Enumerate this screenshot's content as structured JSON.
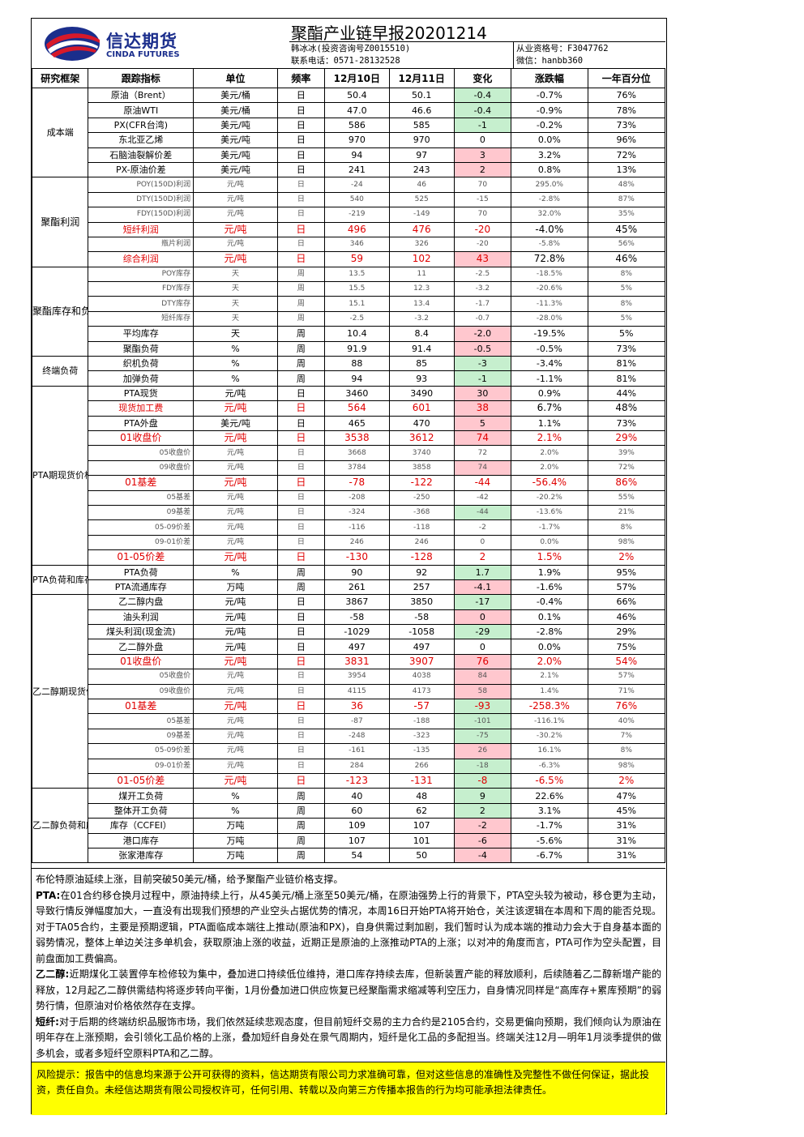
{
  "header": {
    "logo_cn": "信达期货",
    "logo_en": "CINDA FUTURES",
    "title": "聚酯产业链早报20201214",
    "analyst": "韩冰冰(投资咨询号Z0015510)",
    "phone": "联系电话：0571-28132528",
    "license": "从业资格号：F3047762",
    "wechat": "微信：hanbb360"
  },
  "columns": [
    "研究框架",
    "跟踪指标",
    "单位",
    "频率",
    "12月10日",
    "12月11日",
    "变化",
    "涨跌幅",
    "一年百分位"
  ],
  "groups": [
    {
      "name": "成本端",
      "rows": [
        {
          "ind": "原油（Brent）",
          "unit": "美元/桶",
          "freq": "日",
          "d1": "50.4",
          "d2": "50.1",
          "chg": "-0.4",
          "pct": "-0.7%",
          "pctl": "76%",
          "hl": "g"
        },
        {
          "ind": "原油WTI",
          "unit": "美元/桶",
          "freq": "日",
          "d1": "47.0",
          "d2": "46.6",
          "chg": "-0.4",
          "pct": "-0.9%",
          "pctl": "78%",
          "hl": "g"
        },
        {
          "ind": "PX(CFR台湾)",
          "unit": "美元/吨",
          "freq": "日",
          "d1": "586",
          "d2": "585",
          "chg": "-1",
          "pct": "-0.2%",
          "pctl": "73%",
          "hl": "g"
        },
        {
          "ind": "东北亚乙烯",
          "unit": "美元/吨",
          "freq": "日",
          "d1": "970",
          "d2": "970",
          "chg": "0",
          "pct": "0.0%",
          "pctl": "96%",
          "hl": ""
        },
        {
          "ind": "石脑油裂解价差",
          "unit": "美元/吨",
          "freq": "日",
          "d1": "94",
          "d2": "97",
          "chg": "3",
          "pct": "3.2%",
          "pctl": "72%",
          "hl": "r"
        },
        {
          "ind": "PX-原油价差",
          "unit": "美元/吨",
          "freq": "日",
          "d1": "241",
          "d2": "243",
          "chg": "2",
          "pct": "0.8%",
          "pctl": "13%",
          "hl": "r"
        }
      ]
    },
    {
      "name": "聚酯利润",
      "rows": [
        {
          "ind": "POY(150D)利润",
          "unit": "元/吨",
          "freq": "日",
          "d1": "-24",
          "d2": "46",
          "chg": "70",
          "pct": "295.0%",
          "pctl": "48%",
          "hl": "",
          "style": "small"
        },
        {
          "ind": "DTY(150D)利润",
          "unit": "元/吨",
          "freq": "日",
          "d1": "540",
          "d2": "525",
          "chg": "-15",
          "pct": "-2.8%",
          "pctl": "87%",
          "hl": "",
          "style": "small"
        },
        {
          "ind": "FDY(150D)利润",
          "unit": "元/吨",
          "freq": "日",
          "d1": "-219",
          "d2": "-149",
          "chg": "70",
          "pct": "32.0%",
          "pctl": "35%",
          "hl": "",
          "style": "small"
        },
        {
          "ind": "短纤利润",
          "unit": "元/吨",
          "freq": "日",
          "d1": "496",
          "d2": "476",
          "chg": "-20",
          "pct": "-4.0%",
          "pctl": "45%",
          "hl": "",
          "style": "redleft"
        },
        {
          "ind": "瓶片利润",
          "unit": "元/吨",
          "freq": "日",
          "d1": "346",
          "d2": "326",
          "chg": "-20",
          "pct": "-5.8%",
          "pctl": "56%",
          "hl": "",
          "style": "small"
        },
        {
          "ind": "综合利润",
          "unit": "元/吨",
          "freq": "日",
          "d1": "59",
          "d2": "102",
          "chg": "43",
          "pct": "72.8%",
          "pctl": "46%",
          "hl": "r",
          "style": "redleft2"
        }
      ]
    },
    {
      "name": "聚酯库存和负荷",
      "rows": [
        {
          "ind": "POY库存",
          "unit": "天",
          "freq": "周",
          "d1": "13.5",
          "d2": "11",
          "chg": "-2.5",
          "pct": "-18.5%",
          "pctl": "8%",
          "hl": "",
          "style": "small"
        },
        {
          "ind": "FDY库存",
          "unit": "天",
          "freq": "周",
          "d1": "15.5",
          "d2": "12.3",
          "chg": "-3.2",
          "pct": "-20.6%",
          "pctl": "5%",
          "hl": "",
          "style": "small"
        },
        {
          "ind": "DTY库存",
          "unit": "天",
          "freq": "周",
          "d1": "15.1",
          "d2": "13.4",
          "chg": "-1.7",
          "pct": "-11.3%",
          "pctl": "8%",
          "hl": "",
          "style": "small"
        },
        {
          "ind": "短纤库存",
          "unit": "天",
          "freq": "周",
          "d1": "-2.5",
          "d2": "-3.2",
          "chg": "-0.7",
          "pct": "-28.0%",
          "pctl": "5%",
          "hl": "",
          "style": "small"
        },
        {
          "ind": "平均库存",
          "unit": "天",
          "freq": "周",
          "d1": "10.4",
          "d2": "8.4",
          "chg": "-2.0",
          "pct": "-19.5%",
          "pctl": "5%",
          "hl": "r"
        },
        {
          "ind": "聚酯负荷",
          "unit": "%",
          "freq": "周",
          "d1": "91.9",
          "d2": "91.4",
          "chg": "-0.5",
          "pct": "-0.5%",
          "pctl": "73%",
          "hl": "r"
        }
      ]
    },
    {
      "name": "终端负荷",
      "rows": [
        {
          "ind": "织机负荷",
          "unit": "%",
          "freq": "周",
          "d1": "88",
          "d2": "85",
          "chg": "-3",
          "pct": "-3.4%",
          "pctl": "81%",
          "hl": "g"
        },
        {
          "ind": "加弹负荷",
          "unit": "%",
          "freq": "周",
          "d1": "94",
          "d2": "93",
          "chg": "-1",
          "pct": "-1.1%",
          "pctl": "81%",
          "hl": "g"
        }
      ]
    },
    {
      "name": "PTA期现货价格和价差",
      "rows": [
        {
          "ind": "PTA现货",
          "unit": "元/吨",
          "freq": "日",
          "d1": "3460",
          "d2": "3490",
          "chg": "30",
          "pct": "0.9%",
          "pctl": "44%",
          "hl": "r"
        },
        {
          "ind": "现货加工费",
          "unit": "元/吨",
          "freq": "日",
          "d1": "564",
          "d2": "601",
          "chg": "38",
          "pct": "6.7%",
          "pctl": "48%",
          "hl": "r",
          "style": "redleft"
        },
        {
          "ind": "PTA外盘",
          "unit": "美元/吨",
          "freq": "日",
          "d1": "465",
          "d2": "470",
          "chg": "5",
          "pct": "1.1%",
          "pctl": "73%",
          "hl": "r"
        },
        {
          "ind": "01收盘价",
          "unit": "元/吨",
          "freq": "日",
          "d1": "3538",
          "d2": "3612",
          "chg": "74",
          "pct": "2.1%",
          "pctl": "29%",
          "hl": "r",
          "style": "red"
        },
        {
          "ind": "05收盘价",
          "unit": "元/吨",
          "freq": "日",
          "d1": "3668",
          "d2": "3740",
          "chg": "72",
          "pct": "2.0%",
          "pctl": "39%",
          "hl": "",
          "style": "small"
        },
        {
          "ind": "09收盘价",
          "unit": "元/吨",
          "freq": "日",
          "d1": "3784",
          "d2": "3858",
          "chg": "74",
          "pct": "2.0%",
          "pctl": "72%",
          "hl": "r",
          "style": "small"
        },
        {
          "ind": "01基差",
          "unit": "元/吨",
          "freq": "日",
          "d1": "-78",
          "d2": "-122",
          "chg": "-44",
          "pct": "-56.4%",
          "pctl": "86%",
          "hl": "",
          "style": "red"
        },
        {
          "ind": "05基差",
          "unit": "元/吨",
          "freq": "日",
          "d1": "-208",
          "d2": "-250",
          "chg": "-42",
          "pct": "-20.2%",
          "pctl": "55%",
          "hl": "",
          "style": "small"
        },
        {
          "ind": "09基差",
          "unit": "元/吨",
          "freq": "日",
          "d1": "-324",
          "d2": "-368",
          "chg": "-44",
          "pct": "-13.6%",
          "pctl": "21%",
          "hl": "g",
          "style": "small"
        },
        {
          "ind": "05-09价差",
          "unit": "元/吨",
          "freq": "日",
          "d1": "-116",
          "d2": "-118",
          "chg": "-2",
          "pct": "-1.7%",
          "pctl": "8%",
          "hl": "",
          "style": "small"
        },
        {
          "ind": "09-01价差",
          "unit": "元/吨",
          "freq": "日",
          "d1": "246",
          "d2": "246",
          "chg": "0",
          "pct": "0.0%",
          "pctl": "98%",
          "hl": "",
          "style": "small"
        },
        {
          "ind": "01-05价差",
          "unit": "元/吨",
          "freq": "日",
          "d1": "-130",
          "d2": "-128",
          "chg": "2",
          "pct": "1.5%",
          "pctl": "2%",
          "hl": "",
          "style": "red"
        }
      ]
    },
    {
      "name": "PTA负荷和库存",
      "rows": [
        {
          "ind": "PTA负荷",
          "unit": "%",
          "freq": "周",
          "d1": "90",
          "d2": "92",
          "chg": "1.7",
          "pct": "1.9%",
          "pctl": "95%",
          "hl": "g"
        },
        {
          "ind": "PTA流通库存",
          "unit": "万吨",
          "freq": "周",
          "d1": "261",
          "d2": "257",
          "chg": "-4.1",
          "pct": "-1.6%",
          "pctl": "57%",
          "hl": "r"
        }
      ]
    },
    {
      "name": "乙二醇期现货价格和价差",
      "rows": [
        {
          "ind": "乙二醇内盘",
          "unit": "元/吨",
          "freq": "日",
          "d1": "3867",
          "d2": "3850",
          "chg": "-17",
          "pct": "-0.4%",
          "pctl": "66%",
          "hl": "g"
        },
        {
          "ind": "油头利润",
          "unit": "元/吨",
          "freq": "日",
          "d1": "-58",
          "d2": "-58",
          "chg": "0",
          "pct": "0.1%",
          "pctl": "46%",
          "hl": "r"
        },
        {
          "ind": "煤头利润(现金流)",
          "unit": "元/吨",
          "freq": "日",
          "d1": "-1029",
          "d2": "-1058",
          "chg": "-29",
          "pct": "-2.8%",
          "pctl": "29%",
          "hl": "g"
        },
        {
          "ind": "乙二醇外盘",
          "unit": "元/吨",
          "freq": "日",
          "d1": "497",
          "d2": "497",
          "chg": "0",
          "pct": "0.0%",
          "pctl": "75%",
          "hl": ""
        },
        {
          "ind": "01收盘价",
          "unit": "元/吨",
          "freq": "日",
          "d1": "3831",
          "d2": "3907",
          "chg": "76",
          "pct": "2.0%",
          "pctl": "54%",
          "hl": "r",
          "style": "red"
        },
        {
          "ind": "05收盘价",
          "unit": "元/吨",
          "freq": "日",
          "d1": "3954",
          "d2": "4038",
          "chg": "84",
          "pct": "2.1%",
          "pctl": "57%",
          "hl": "r",
          "style": "small"
        },
        {
          "ind": "09收盘价",
          "unit": "元/吨",
          "freq": "日",
          "d1": "4115",
          "d2": "4173",
          "chg": "58",
          "pct": "1.4%",
          "pctl": "71%",
          "hl": "r",
          "style": "small"
        },
        {
          "ind": "01基差",
          "unit": "元/吨",
          "freq": "日",
          "d1": "36",
          "d2": "-57",
          "chg": "-93",
          "pct": "-258.3%",
          "pctl": "76%",
          "hl": "g",
          "style": "red"
        },
        {
          "ind": "05基差",
          "unit": "元/吨",
          "freq": "日",
          "d1": "-87",
          "d2": "-188",
          "chg": "-101",
          "pct": "-116.1%",
          "pctl": "40%",
          "hl": "g",
          "style": "small"
        },
        {
          "ind": "09基差",
          "unit": "元/吨",
          "freq": "日",
          "d1": "-248",
          "d2": "-323",
          "chg": "-75",
          "pct": "-30.2%",
          "pctl": "7%",
          "hl": "g",
          "style": "small"
        },
        {
          "ind": "05-09价差",
          "unit": "元/吨",
          "freq": "日",
          "d1": "-161",
          "d2": "-135",
          "chg": "26",
          "pct": "16.1%",
          "pctl": "8%",
          "hl": "r",
          "style": "small"
        },
        {
          "ind": "09-01价差",
          "unit": "元/吨",
          "freq": "日",
          "d1": "284",
          "d2": "266",
          "chg": "-18",
          "pct": "-6.3%",
          "pctl": "98%",
          "hl": "g",
          "style": "small"
        },
        {
          "ind": "01-05价差",
          "unit": "元/吨",
          "freq": "日",
          "d1": "-123",
          "d2": "-131",
          "chg": "-8",
          "pct": "-6.5%",
          "pctl": "2%",
          "hl": "g",
          "style": "red"
        }
      ]
    },
    {
      "name": "乙二醇负荷和库存",
      "rows": [
        {
          "ind": "煤开工负荷",
          "unit": "%",
          "freq": "周",
          "d1": "40",
          "d2": "48",
          "chg": "9",
          "pct": "22.6%",
          "pctl": "47%",
          "hl": "g"
        },
        {
          "ind": "整体开工负荷",
          "unit": "%",
          "freq": "周",
          "d1": "60",
          "d2": "62",
          "chg": "2",
          "pct": "3.1%",
          "pctl": "45%",
          "hl": "g"
        },
        {
          "ind": "库存（CCFEI）",
          "unit": "万吨",
          "freq": "周",
          "d1": "109",
          "d2": "107",
          "chg": "-2",
          "pct": "-1.7%",
          "pctl": "31%",
          "hl": "r"
        },
        {
          "ind": "港口库存",
          "unit": "万吨",
          "freq": "周",
          "d1": "107",
          "d2": "101",
          "chg": "-6",
          "pct": "-5.6%",
          "pctl": "31%",
          "hl": "r"
        },
        {
          "ind": "张家港库存",
          "unit": "万吨",
          "freq": "周",
          "d1": "54",
          "d2": "50",
          "chg": "-4",
          "pct": "-6.7%",
          "pctl": "31%",
          "hl": "r"
        }
      ]
    }
  ],
  "notes": {
    "p1": "布伦特原油延续上涨，目前突破50美元/桶，给予聚酯产业链价格支撑。",
    "p2_label": "PTA:",
    "p2": "在01合约移仓换月过程中，原油持续上行，从45美元/桶上涨至50美元/桶，在原油强势上行的背景下，PTA空头较为被动，移仓更为主动，导致行情反弹幅度加大，一直没有出现我们预想的产业空头占据优势的情况，本周16日开始PTA将开始仓，关注该逻辑在本周和下周的能否兑现。对于TA05合约，主要是预期逻辑，PTA面临成本端往上推动(原油和PX)，自身供需过剩加剧，我们暂时认为成本端的推动力会大于自身基本面的弱势情况，整体上单边关注多单机会，获取原油上涨的收益，近期正是原油的上涨推动PTA的上涨；以对冲的角度而言，PTA可作为空头配置，目前盘面加工费偏高。",
    "p3_label": "乙二醇:",
    "p3": "近期煤化工装置停车检修较为集中，叠加进口持续低位维持，港口库存持续去库，但新装置产能的释放顺利，后续随着乙二醇新增产能的释放，12月起乙二醇供需结构将逐步转向平衡，1月份叠加进口供应恢复已经聚酯需求缩减等利空压力，自身情况同样是“高库存+累库预期”的弱势行情，但原油对价格依然存在支撑。",
    "p4_label": "短纤:",
    "p4": "对于后期的终端纺织品服饰市场，我们依然延续悲观态度，但目前短纤交易的主力合约是2105合约，交易更偏向预期，我们倾向认为原油在明年存在上涨预期，会引领化工品价格的上涨，叠加短纤自身处在景气周期内，短纤是化工品的多配担当。终端关注12月—明年1月淡季提供的做多机会，或者多短纤空原料PTA和乙二醇。"
  },
  "risk": "风险提示：报告中的信息均来源于公开可获得的资料，信达期货有限公司力求准确可靠，但对这些信息的准确性及完整性不做任何保证，据此投资，责任自负。未经信达期货有限公司授权许可，任何引用、转载以及向第三方传播本报告的行为均可能承担法律责任。",
  "colors": {
    "green_cell": "#c6efce",
    "red_cell": "#ffc7ce",
    "red_text": "#e00000",
    "brand_blue": "#1b2e8c",
    "brand_red": "#d7192a",
    "risk_bg": "#ffff00"
  }
}
